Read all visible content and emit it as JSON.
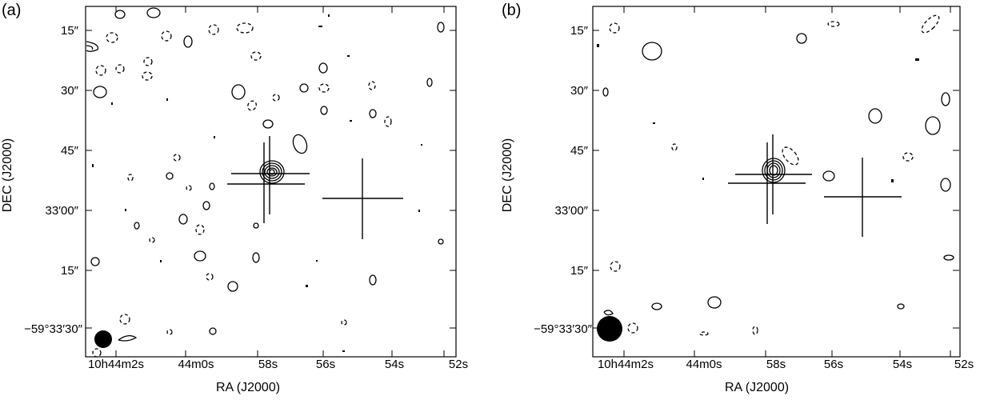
{
  "panels": [
    {
      "id": "a",
      "label": "(a)",
      "ylabel": "DEC (J2000)",
      "xlabel": "RA (J2000)",
      "yticks": [
        "15″",
        "30″",
        "45″",
        "33′00″",
        "15″",
        "−59°33′30″"
      ],
      "xticks": [
        "10h44m2s",
        "44m0s",
        "58s",
        "56s",
        "54s",
        "52s"
      ]
    },
    {
      "id": "b",
      "label": "(b)",
      "ylabel": "DEC (J2000)",
      "xlabel": "RA (J2000)",
      "yticks": [
        "15″",
        "30″",
        "45″",
        "33′00″",
        "15″",
        "−59°33′30″"
      ],
      "xticks": [
        "10h44m2s",
        "44m0s",
        "58s",
        "56s",
        "54s",
        "52s"
      ]
    }
  ],
  "contours": {
    "solid_color": "#000000",
    "dashed_color": "#000000",
    "beam_color": "#000000"
  }
}
